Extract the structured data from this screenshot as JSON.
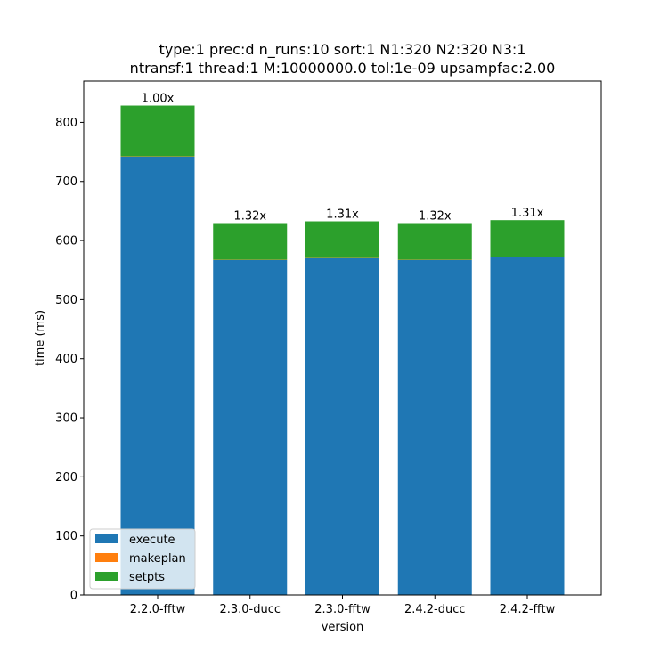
{
  "chart_data": {
    "type": "bar",
    "stacked": true,
    "title": "type:1 prec:d n_runs:10 sort:1 N1:320 N2:320 N3:1",
    "subtitle": "ntransf:1 thread:1 M:10000000.0 tol:1e-09 upsampfac:2.00",
    "xlabel": "version",
    "ylabel": "time (ms)",
    "categories": [
      "2.2.0-fftw",
      "2.3.0-ducc",
      "2.3.0-fftw",
      "2.4.2-ducc",
      "2.4.2-fftw"
    ],
    "series": [
      {
        "name": "execute",
        "color": "#1f77b4",
        "values": [
          742,
          567,
          570,
          567,
          572
        ]
      },
      {
        "name": "makeplan",
        "color": "#ff7f0e",
        "values": [
          0.5,
          0.5,
          0.5,
          0.5,
          0.5
        ]
      },
      {
        "name": "setpts",
        "color": "#2ca02c",
        "values": [
          86,
          62,
          62,
          62,
          62
        ]
      }
    ],
    "bar_labels": [
      "1.00x",
      "1.32x",
      "1.31x",
      "1.32x",
      "1.31x"
    ],
    "ylim": [
      0,
      870
    ],
    "yticks": [
      0,
      100,
      200,
      300,
      400,
      500,
      600,
      700,
      800
    ],
    "grid": false,
    "legend_position": "lower-left"
  }
}
